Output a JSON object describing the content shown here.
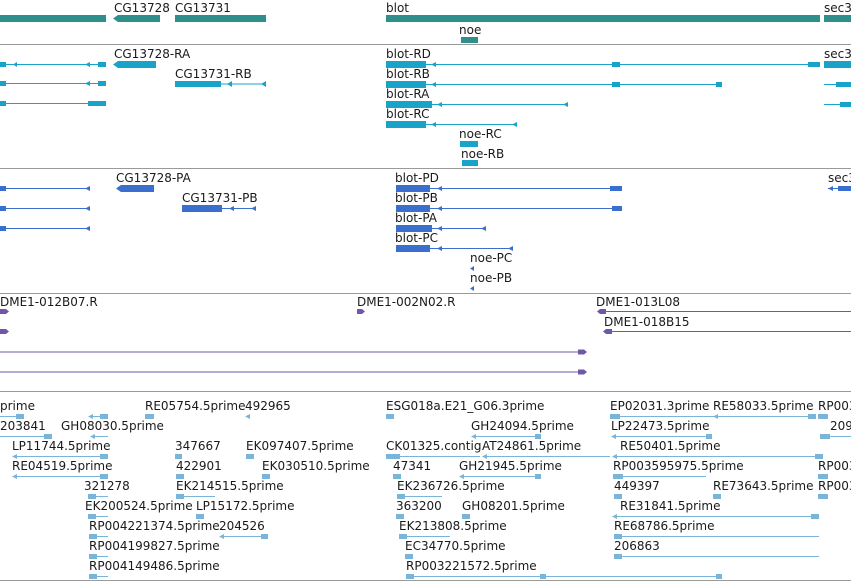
{
  "colors": {
    "gene": "#2f8f8b",
    "mrna": "#1aa3c8",
    "protein": "#3a6fce",
    "clone": "#7157a8",
    "est": "#7bb4d9",
    "separator": "#999999"
  },
  "tracks": {
    "gene": [
      {
        "label": "CG13728"
      },
      {
        "label": "CG13731"
      },
      {
        "label": "blot"
      },
      {
        "label": "noe"
      },
      {
        "label": "sec3"
      }
    ],
    "mrna": [
      {
        "label": "CG13728-RA"
      },
      {
        "label": "CG13731-RB"
      },
      {
        "label": "blot-RD"
      },
      {
        "label": "blot-RB"
      },
      {
        "label": "blot-RA"
      },
      {
        "label": "blot-RC"
      },
      {
        "label": "noe-RC"
      },
      {
        "label": "noe-RB"
      },
      {
        "label": "sec3"
      }
    ],
    "protein": [
      {
        "label": "CG13728-PA"
      },
      {
        "label": "CG13731-PB"
      },
      {
        "label": "blot-PD"
      },
      {
        "label": "blot-PB"
      },
      {
        "label": "blot-PA"
      },
      {
        "label": "blot-PC"
      },
      {
        "label": "noe-PC"
      },
      {
        "label": "noe-PB"
      },
      {
        "label": "sec3"
      }
    ],
    "clone": [
      {
        "label": "DME1-012B07.R"
      },
      {
        "label": "DME1-002N02.R"
      },
      {
        "label": "DME1-013L08"
      },
      {
        "label": "DME1-018B15"
      }
    ],
    "est": [
      {
        "label": "prime"
      },
      {
        "label": "RE05754.5prime"
      },
      {
        "label": "492965"
      },
      {
        "label": "ESG018a.E21_G06.3prime"
      },
      {
        "label": "EP02031.3prime"
      },
      {
        "label": "RE58033.5prime"
      },
      {
        "label": "RP003"
      },
      {
        "label": "203841"
      },
      {
        "label": "GH08030.5prime"
      },
      {
        "label": "GH24094.5prime"
      },
      {
        "label": "LP22473.5prime"
      },
      {
        "label": "209"
      },
      {
        "label": "LP11744.5prime"
      },
      {
        "label": "347667"
      },
      {
        "label": "EK097407.5prime"
      },
      {
        "label": "CK01325.contig"
      },
      {
        "label": "AT24861.5prime"
      },
      {
        "label": "RE50401.5prime"
      },
      {
        "label": "RE04519.5prime"
      },
      {
        "label": "422901"
      },
      {
        "label": "EK030510.5prime"
      },
      {
        "label": "47341"
      },
      {
        "label": "GH21945.5prime"
      },
      {
        "label": "RP003595975.5prime"
      },
      {
        "label": "RP003"
      },
      {
        "label": "321278"
      },
      {
        "label": "EK214515.5prime"
      },
      {
        "label": "EK236726.5prime"
      },
      {
        "label": "449397"
      },
      {
        "label": "RE73643.5prime"
      },
      {
        "label": "RP003"
      },
      {
        "label": "EK200524.5prime"
      },
      {
        "label": "LP15172.5prime"
      },
      {
        "label": "363200"
      },
      {
        "label": "GH08201.5prime"
      },
      {
        "label": "RE31841.5prime"
      },
      {
        "label": "RP004221374.5prime"
      },
      {
        "label": "204526"
      },
      {
        "label": "EK213808.5prime"
      },
      {
        "label": "RE68786.5prime"
      },
      {
        "label": "RP004199827.5prime"
      },
      {
        "label": "EC34770.5prime"
      },
      {
        "label": "206863"
      },
      {
        "label": "RP004149486.5prime"
      },
      {
        "label": "RP003221572.5prime"
      }
    ]
  }
}
